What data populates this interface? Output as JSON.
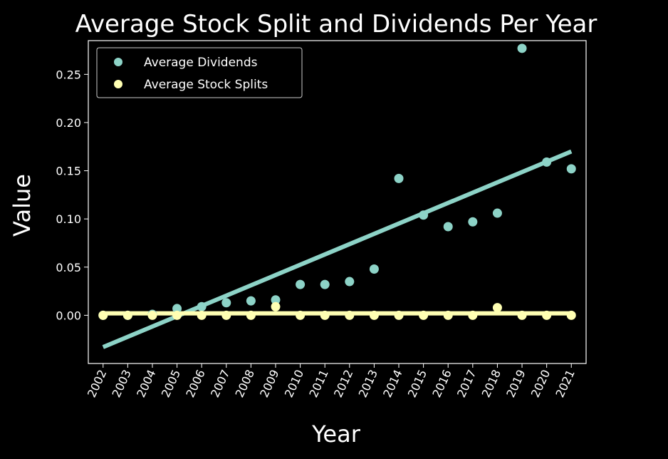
{
  "chart_data": {
    "type": "scatter",
    "title": "Average Stock Split and Dividends Per Year",
    "xlabel": "Year",
    "ylabel": "Value",
    "x": [
      2002,
      2003,
      2004,
      2005,
      2006,
      2007,
      2008,
      2009,
      2010,
      2011,
      2012,
      2013,
      2014,
      2015,
      2016,
      2017,
      2018,
      2019,
      2020,
      2021
    ],
    "x_tick_labels": [
      "2002",
      "2003",
      "2004",
      "2005",
      "2006",
      "2007",
      "2008",
      "2009",
      "2010",
      "2011",
      "2012",
      "2013",
      "2014",
      "2015",
      "2016",
      "2017",
      "2018",
      "2019",
      "2020",
      "2021"
    ],
    "y_ticks": [
      0.0,
      0.05,
      0.1,
      0.15,
      0.2,
      0.25
    ],
    "y_tick_labels": [
      "0.00",
      "0.05",
      "0.10",
      "0.15",
      "0.20",
      "0.25"
    ],
    "ylim": [
      -0.05,
      0.285
    ],
    "xlim": [
      2001.4,
      2021.6
    ],
    "legend_position": "upper-left",
    "grid": false,
    "background": "#000000",
    "series": [
      {
        "name": "Average Dividends",
        "color": "#8dd3c7",
        "values": [
          0.0,
          0.0,
          0.001,
          0.007,
          0.009,
          0.013,
          0.015,
          0.016,
          0.032,
          0.032,
          0.035,
          0.048,
          0.142,
          0.104,
          0.092,
          0.097,
          0.106,
          0.277,
          0.159,
          0.152
        ],
        "trendline": {
          "x": [
            2002,
            2021
          ],
          "y": [
            -0.033,
            0.17
          ]
        }
      },
      {
        "name": "Average Stock Splits",
        "color": "#ffffb3",
        "values": [
          0.0,
          0.0,
          0.0,
          0.0,
          0.0,
          0.0,
          0.0,
          0.009,
          0.0,
          0.0,
          0.0,
          0.0,
          0.0,
          0.0,
          0.0,
          0.0,
          0.008,
          0.0,
          0.0,
          0.0
        ],
        "trendline": {
          "x": [
            2002,
            2021
          ],
          "y": [
            0.002,
            0.002
          ]
        }
      }
    ]
  }
}
